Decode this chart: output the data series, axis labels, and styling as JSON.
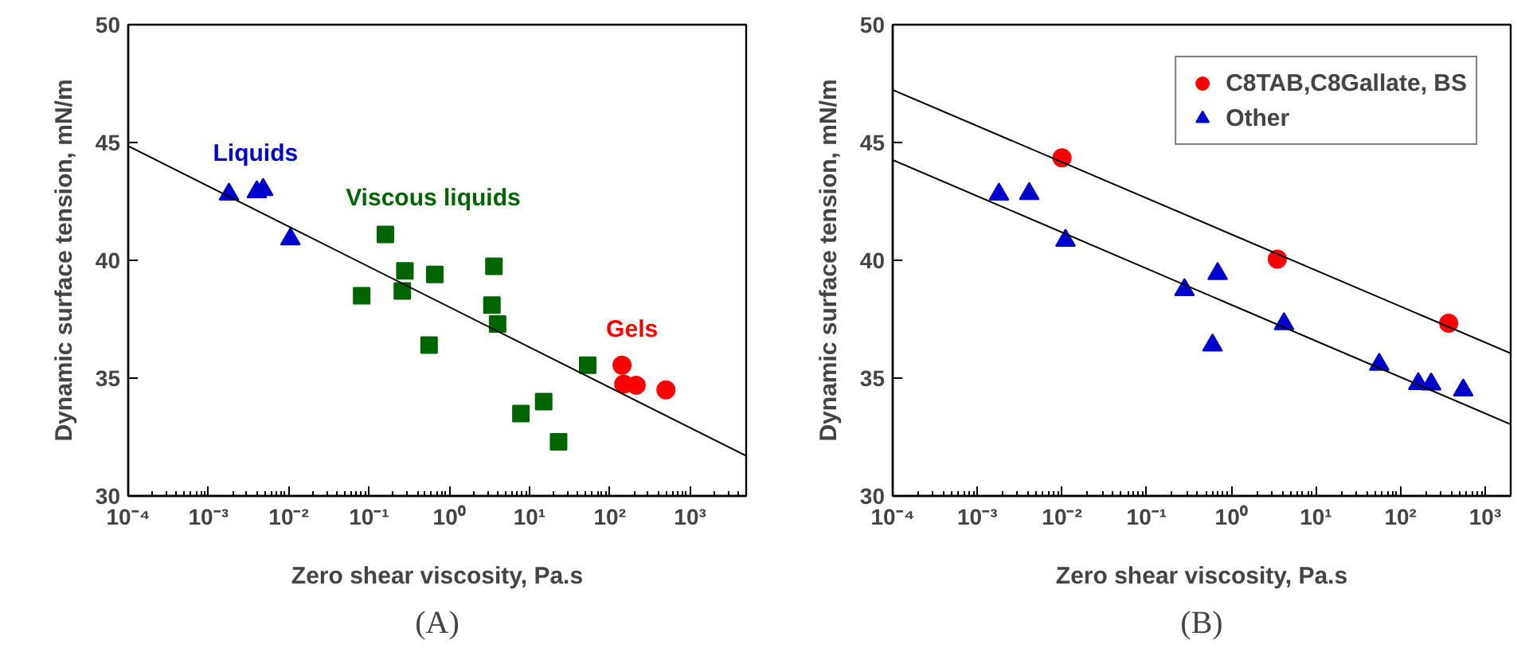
{
  "chart_data": [
    {
      "type": "scatter",
      "xlabel": "Zero shear viscosity, Pa.s",
      "ylabel": "Dynamic surface tension, mN/m",
      "log": "x",
      "legend": false,
      "grid": false,
      "xlim": [
        0.0001,
        5000
      ],
      "ylim": [
        30,
        50
      ],
      "xticks": [
        {
          "value": 0.0001,
          "label": "10⁻⁴"
        },
        {
          "value": 0.001,
          "label": "10⁻³"
        },
        {
          "value": 0.01,
          "label": "10⁻²"
        },
        {
          "value": 0.1,
          "label": "10⁻¹"
        },
        {
          "value": 1,
          "label": "10⁰"
        },
        {
          "value": 10,
          "label": "10¹"
        },
        {
          "value": 100,
          "label": "10²"
        },
        {
          "value": 1000,
          "label": "10³"
        }
      ],
      "yticks": [
        30,
        35,
        40,
        45,
        50
      ],
      "annotations": [
        "(A)"
      ],
      "series": [
        {
          "name": "Liquids",
          "color": "#0000cc",
          "marker": "triangle",
          "x": [
            0.0018,
            0.004,
            0.0048,
            0.0105
          ],
          "values": [
            42.8,
            42.9,
            43.0,
            40.9
          ]
        },
        {
          "name": "Viscous liquids",
          "color": "#006400",
          "marker": "square",
          "x": [
            0.081,
            0.16,
            0.28,
            0.26,
            0.66,
            0.56,
            3.6,
            3.4,
            4.0,
            53,
            7.8,
            15,
            23
          ],
          "values": [
            38.5,
            41.1,
            39.55,
            38.7,
            39.4,
            36.4,
            39.75,
            38.1,
            37.3,
            35.55,
            33.5,
            34.0,
            32.3
          ]
        },
        {
          "name": "Gels",
          "color": "#ff0000",
          "marker": "circle",
          "x": [
            142,
            149,
            213,
            500
          ],
          "values": [
            35.55,
            34.75,
            34.7,
            34.5
          ]
        },
        {
          "type": "line",
          "color": "#000000",
          "x": [
            0.0001,
            5000
          ],
          "values": [
            44.85,
            31.7
          ]
        }
      ]
    },
    {
      "type": "scatter",
      "xlabel": "Zero shear viscosity, Pa.s",
      "ylabel": "Dynamic surface tension, mN/m",
      "log": "x",
      "legend": "top right",
      "grid": false,
      "xlim": [
        0.0001,
        2000
      ],
      "ylim": [
        30,
        50
      ],
      "xticks": [
        {
          "value": 0.0001,
          "label": "10⁻⁴"
        },
        {
          "value": 0.001,
          "label": "10⁻³"
        },
        {
          "value": 0.01,
          "label": "10⁻²"
        },
        {
          "value": 0.1,
          "label": "10⁻¹"
        },
        {
          "value": 1,
          "label": "10⁰"
        },
        {
          "value": 10,
          "label": "10¹"
        },
        {
          "value": 100,
          "label": "10²"
        },
        {
          "value": 1000,
          "label": "10³"
        }
      ],
      "yticks": [
        30,
        35,
        40,
        45,
        50
      ],
      "annotations": [
        "(B)"
      ],
      "series": [
        {
          "name": "C8TAB,C8Gallate, BS",
          "color": "#ff0000",
          "marker": "circle",
          "x": [
            0.01,
            3.5,
            370
          ],
          "values": [
            44.35,
            40.05,
            37.33
          ]
        },
        {
          "name": "Other",
          "color": "#0000cc",
          "marker": "triangle",
          "x": [
            0.0018,
            0.0041,
            0.011,
            0.28,
            0.69,
            0.6,
            4.2,
            56,
            162,
            230,
            550
          ],
          "values": [
            42.8,
            42.83,
            40.84,
            38.75,
            39.43,
            36.4,
            37.3,
            35.58,
            34.76,
            34.74,
            34.49
          ]
        },
        {
          "type": "line",
          "color": "#000000",
          "x": [
            0.0001,
            2000
          ],
          "values": [
            47.23,
            36.05
          ]
        },
        {
          "type": "line",
          "color": "#000000",
          "x": [
            0.0001,
            2000
          ],
          "values": [
            44.26,
            33.04
          ]
        }
      ]
    }
  ]
}
